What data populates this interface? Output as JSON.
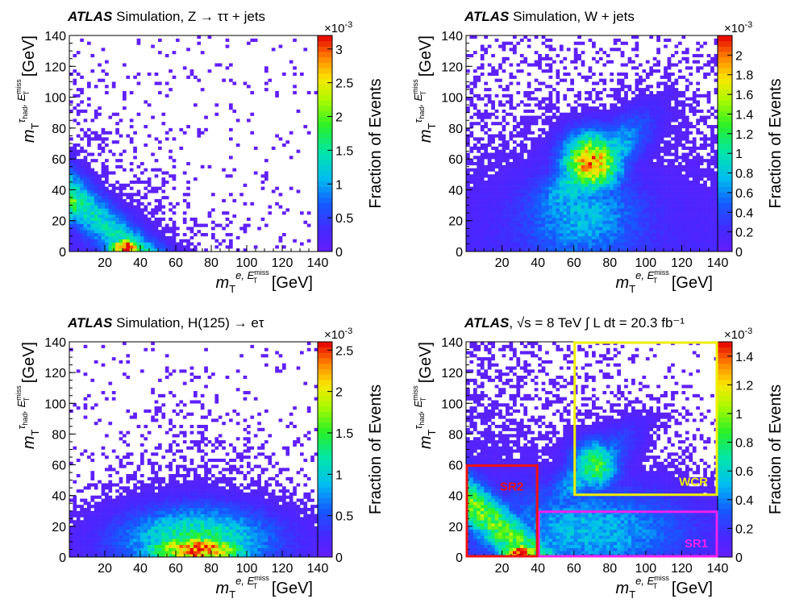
{
  "figure": {
    "panels": [
      {
        "title_bold": "ATLAS",
        "title_rest": "Simulation, Z → ττ + jets",
        "xlabel": "m_T^{e, E_T^miss} [GeV]",
        "ylabel": "m_T^{τ_had, E_T^miss} [GeV]",
        "zlabel": "Fraction of Events",
        "zexp": "×10^-3"
      },
      {
        "title_bold": "ATLAS",
        "title_rest": "Simulation, W + jets",
        "xlabel": "m_T^{e, E_T^miss} [GeV]",
        "ylabel": "m_T^{τ_had, E_T^miss} [GeV]",
        "zlabel": "Fraction of Events",
        "zexp": "×10^-3"
      },
      {
        "title_bold": "ATLAS",
        "title_rest": "Simulation, H(125) → eτ",
        "xlabel": "m_T^{e, E_T^miss} [GeV]",
        "ylabel": "m_T^{τ_had, E_T^miss} [GeV]",
        "zlabel": "Fraction of Events",
        "zexp": "×10^-3"
      },
      {
        "title_bold": "ATLAS",
        "title_rest": ", √s = 8 TeV  ∫ L dt = 20.3 fb⁻¹",
        "xlabel": "m_T^{e, E_T^miss} [GeV]",
        "ylabel": "m_T^{τ_had, E_T^miss} [GeV]",
        "zlabel": "Fraction of Events",
        "zexp": "×10^-3",
        "regions": [
          {
            "name": "SR1",
            "color": "#ee22ee",
            "x": [
              40,
              140
            ],
            "y": [
              0,
              30
            ]
          },
          {
            "name": "SR2",
            "color": "#ee1111",
            "x": [
              0,
              40
            ],
            "y": [
              0,
              60
            ]
          },
          {
            "name": "WCR",
            "color": "#eeee00",
            "x": [
              60,
              140
            ],
            "y": [
              40,
              140
            ]
          }
        ]
      }
    ]
  },
  "chart_data": [
    {
      "type": "heatmap",
      "title": "ATLAS Simulation, Z → ττ + jets",
      "xlabel": "m_T^{e, E_T^miss} [GeV]",
      "ylabel": "m_T^{τ_had, E_T^miss} [GeV]",
      "zlabel": "Fraction of Events",
      "zscale": "×10^-3",
      "xlim": [
        0,
        140
      ],
      "ylim": [
        0,
        140
      ],
      "zlim": [
        0,
        3.2
      ],
      "xticks": [
        20,
        40,
        60,
        80,
        100,
        120,
        140
      ],
      "yticks": [
        0,
        20,
        40,
        60,
        80,
        100,
        120,
        140
      ],
      "zticks": [
        0,
        0.5,
        1,
        1.5,
        2,
        2.5,
        3
      ],
      "peaks": [
        {
          "x": 32,
          "y": 4,
          "z": 3.2
        },
        {
          "x": 3,
          "y": 32,
          "z": 2.0
        }
      ],
      "description_distribution": "anti-diagonal band from (0,40) to (40,0)"
    },
    {
      "type": "heatmap",
      "title": "ATLAS Simulation, W + jets",
      "xlabel": "m_T^{e, E_T^miss} [GeV]",
      "ylabel": "m_T^{τ_had, E_T^miss} [GeV]",
      "zlabel": "Fraction of Events",
      "zscale": "×10^-3",
      "xlim": [
        0,
        140
      ],
      "ylim": [
        0,
        140
      ],
      "zlim": [
        0,
        2.2
      ],
      "xticks": [
        20,
        40,
        60,
        80,
        100,
        120,
        140
      ],
      "yticks": [
        0,
        20,
        40,
        60,
        80,
        100,
        120,
        140
      ],
      "zticks": [
        0,
        0.2,
        0.4,
        0.6,
        0.8,
        1,
        1.2,
        1.4,
        1.6,
        1.8,
        2
      ],
      "peaks": [
        {
          "x": 72,
          "y": 60,
          "z": 2.1
        }
      ]
    },
    {
      "type": "heatmap",
      "title": "ATLAS Simulation, H(125) → eτ",
      "xlabel": "m_T^{e, E_T^miss} [GeV]",
      "ylabel": "m_T^{τ_had, E_T^miss} [GeV]",
      "zlabel": "Fraction of Events",
      "zscale": "×10^-3",
      "xlim": [
        0,
        140
      ],
      "ylim": [
        0,
        140
      ],
      "zlim": [
        0,
        2.6
      ],
      "xticks": [
        20,
        40,
        60,
        80,
        100,
        120,
        140
      ],
      "yticks": [
        0,
        20,
        40,
        60,
        80,
        100,
        120,
        140
      ],
      "zticks": [
        0,
        0.5,
        1,
        1.5,
        2,
        2.5
      ],
      "peaks": [
        {
          "x": 75,
          "y": 5,
          "z": 2.6
        }
      ]
    },
    {
      "type": "heatmap",
      "title": "ATLAS, √s = 8 TeV ∫ L dt = 20.3 fb⁻¹",
      "xlabel": "m_T^{e, E_T^miss} [GeV]",
      "ylabel": "m_T^{τ_had, E_T^miss} [GeV]",
      "zlabel": "Fraction of Events",
      "zscale": "×10^-3",
      "xlim": [
        0,
        140
      ],
      "ylim": [
        0,
        140
      ],
      "zlim": [
        0,
        1.5
      ],
      "xticks": [
        20,
        40,
        60,
        80,
        100,
        120,
        140
      ],
      "yticks": [
        0,
        20,
        40,
        60,
        80,
        100,
        120,
        140
      ],
      "zticks": [
        0,
        0.2,
        0.4,
        0.6,
        0.8,
        1,
        1.2,
        1.4
      ],
      "peaks": [
        {
          "x": 30,
          "y": 4,
          "z": 1.5
        },
        {
          "x": 72,
          "y": 62,
          "z": 0.8
        },
        {
          "x": 3,
          "y": 32,
          "z": 0.9
        }
      ],
      "regions": [
        "SR1",
        "SR2",
        "WCR"
      ]
    }
  ]
}
